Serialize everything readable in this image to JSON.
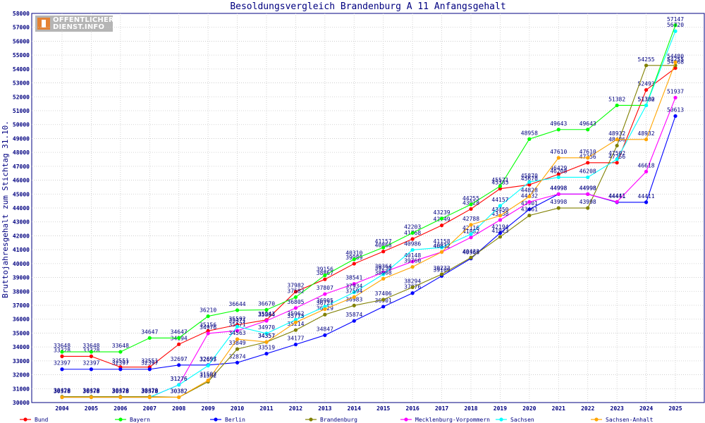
{
  "logo": {
    "line1": "OFFENTLICHER",
    "line2": "DIENST.INFO"
  },
  "chart_data": {
    "type": "line",
    "title": "Besoldungsvergleich Brandenburg A 11 Anfangsgehalt",
    "xlabel": "",
    "ylabel": "Bruttojahresgehalt zum Stichtag 31.10.",
    "ylim": [
      30000,
      58000
    ],
    "yticks": [
      30000,
      31000,
      32000,
      33000,
      34000,
      35000,
      36000,
      37000,
      38000,
      39000,
      40000,
      41000,
      42000,
      43000,
      44000,
      45000,
      46000,
      47000,
      48000,
      49000,
      50000,
      51000,
      52000,
      53000,
      54000,
      55000,
      56000,
      57000,
      58000
    ],
    "grid": true,
    "legend_position": "bottom",
    "categories": [
      "2004",
      "2005",
      "2006",
      "2007",
      "2008",
      "2009",
      "2010",
      "2011",
      "2012",
      "2013",
      "2014",
      "2015",
      "2016",
      "2017",
      "2018",
      "2019",
      "2020",
      "2021",
      "2022",
      "2023",
      "2024",
      "2025"
    ],
    "series": [
      {
        "name": "Bund",
        "color": "#ff0000",
        "values": [
          33328,
          33328,
          32551,
          32551,
          34194,
          35156,
          35592,
          35943,
          37982,
          38867,
          39989,
          40868,
          41768,
          42749,
          43928,
          45385,
          45670,
          46429,
          47256,
          47256,
          52493,
          54068
        ]
      },
      {
        "name": "Bayern",
        "color": "#00ff00",
        "values": [
          33648,
          33648,
          33648,
          34647,
          34647,
          36210,
          36644,
          36670,
          37582,
          39156,
          40310,
          41157,
          42203,
          43239,
          44255,
          45571,
          48958,
          49643,
          49643,
          51382,
          51382,
          57147
        ]
      },
      {
        "name": "Berlin",
        "color": "#0000ff",
        "values": [
          32397,
          32397,
          32397,
          32397,
          32697,
          32697,
          32874,
          33519,
          34177,
          34847,
          35874,
          36901,
          37876,
          39109,
          40366,
          42194,
          43901,
          44998,
          44998,
          44411,
          44411,
          50613
        ]
      },
      {
        "name": "Brandenburg",
        "color": "#808000",
        "values": [
          30420,
          30420,
          30420,
          30420,
          30382,
          31502,
          33849,
          34357,
          35214,
          36329,
          36983,
          37406,
          38294,
          39232,
          40433,
          41923,
          43461,
          43998,
          43998,
          48486,
          54255,
          54255
        ]
      },
      {
        "name": "Mecklenburg-Vorpommern",
        "color": "#ff00ff",
        "values": [
          30378,
          30378,
          30378,
          30378,
          31276,
          34976,
          35171,
          35884,
          36805,
          37807,
          38541,
          39364,
          40148,
          40832,
          41882,
          43138,
          44432,
          44998,
          44998,
          44441,
          46618,
          51937
        ]
      },
      {
        "name": "Sachsen",
        "color": "#00ffff",
        "values": [
          30378,
          30378,
          30378,
          30378,
          31276,
          32655,
          35471,
          34970,
          35962,
          36905,
          37934,
          39230,
          40986,
          41158,
          42116,
          44157,
          45870,
          46208,
          46208,
          47502,
          51380,
          56720
        ]
      },
      {
        "name": "Sachsen-Anhalt",
        "color": "#ffa500",
        "values": [
          30378,
          30378,
          30378,
          30378,
          30382,
          31592,
          34563,
          34357,
          35773,
          36721,
          37594,
          38908,
          39760,
          40832,
          42788,
          43450,
          44828,
          47610,
          47610,
          48932,
          48932,
          54480
        ]
      }
    ]
  }
}
